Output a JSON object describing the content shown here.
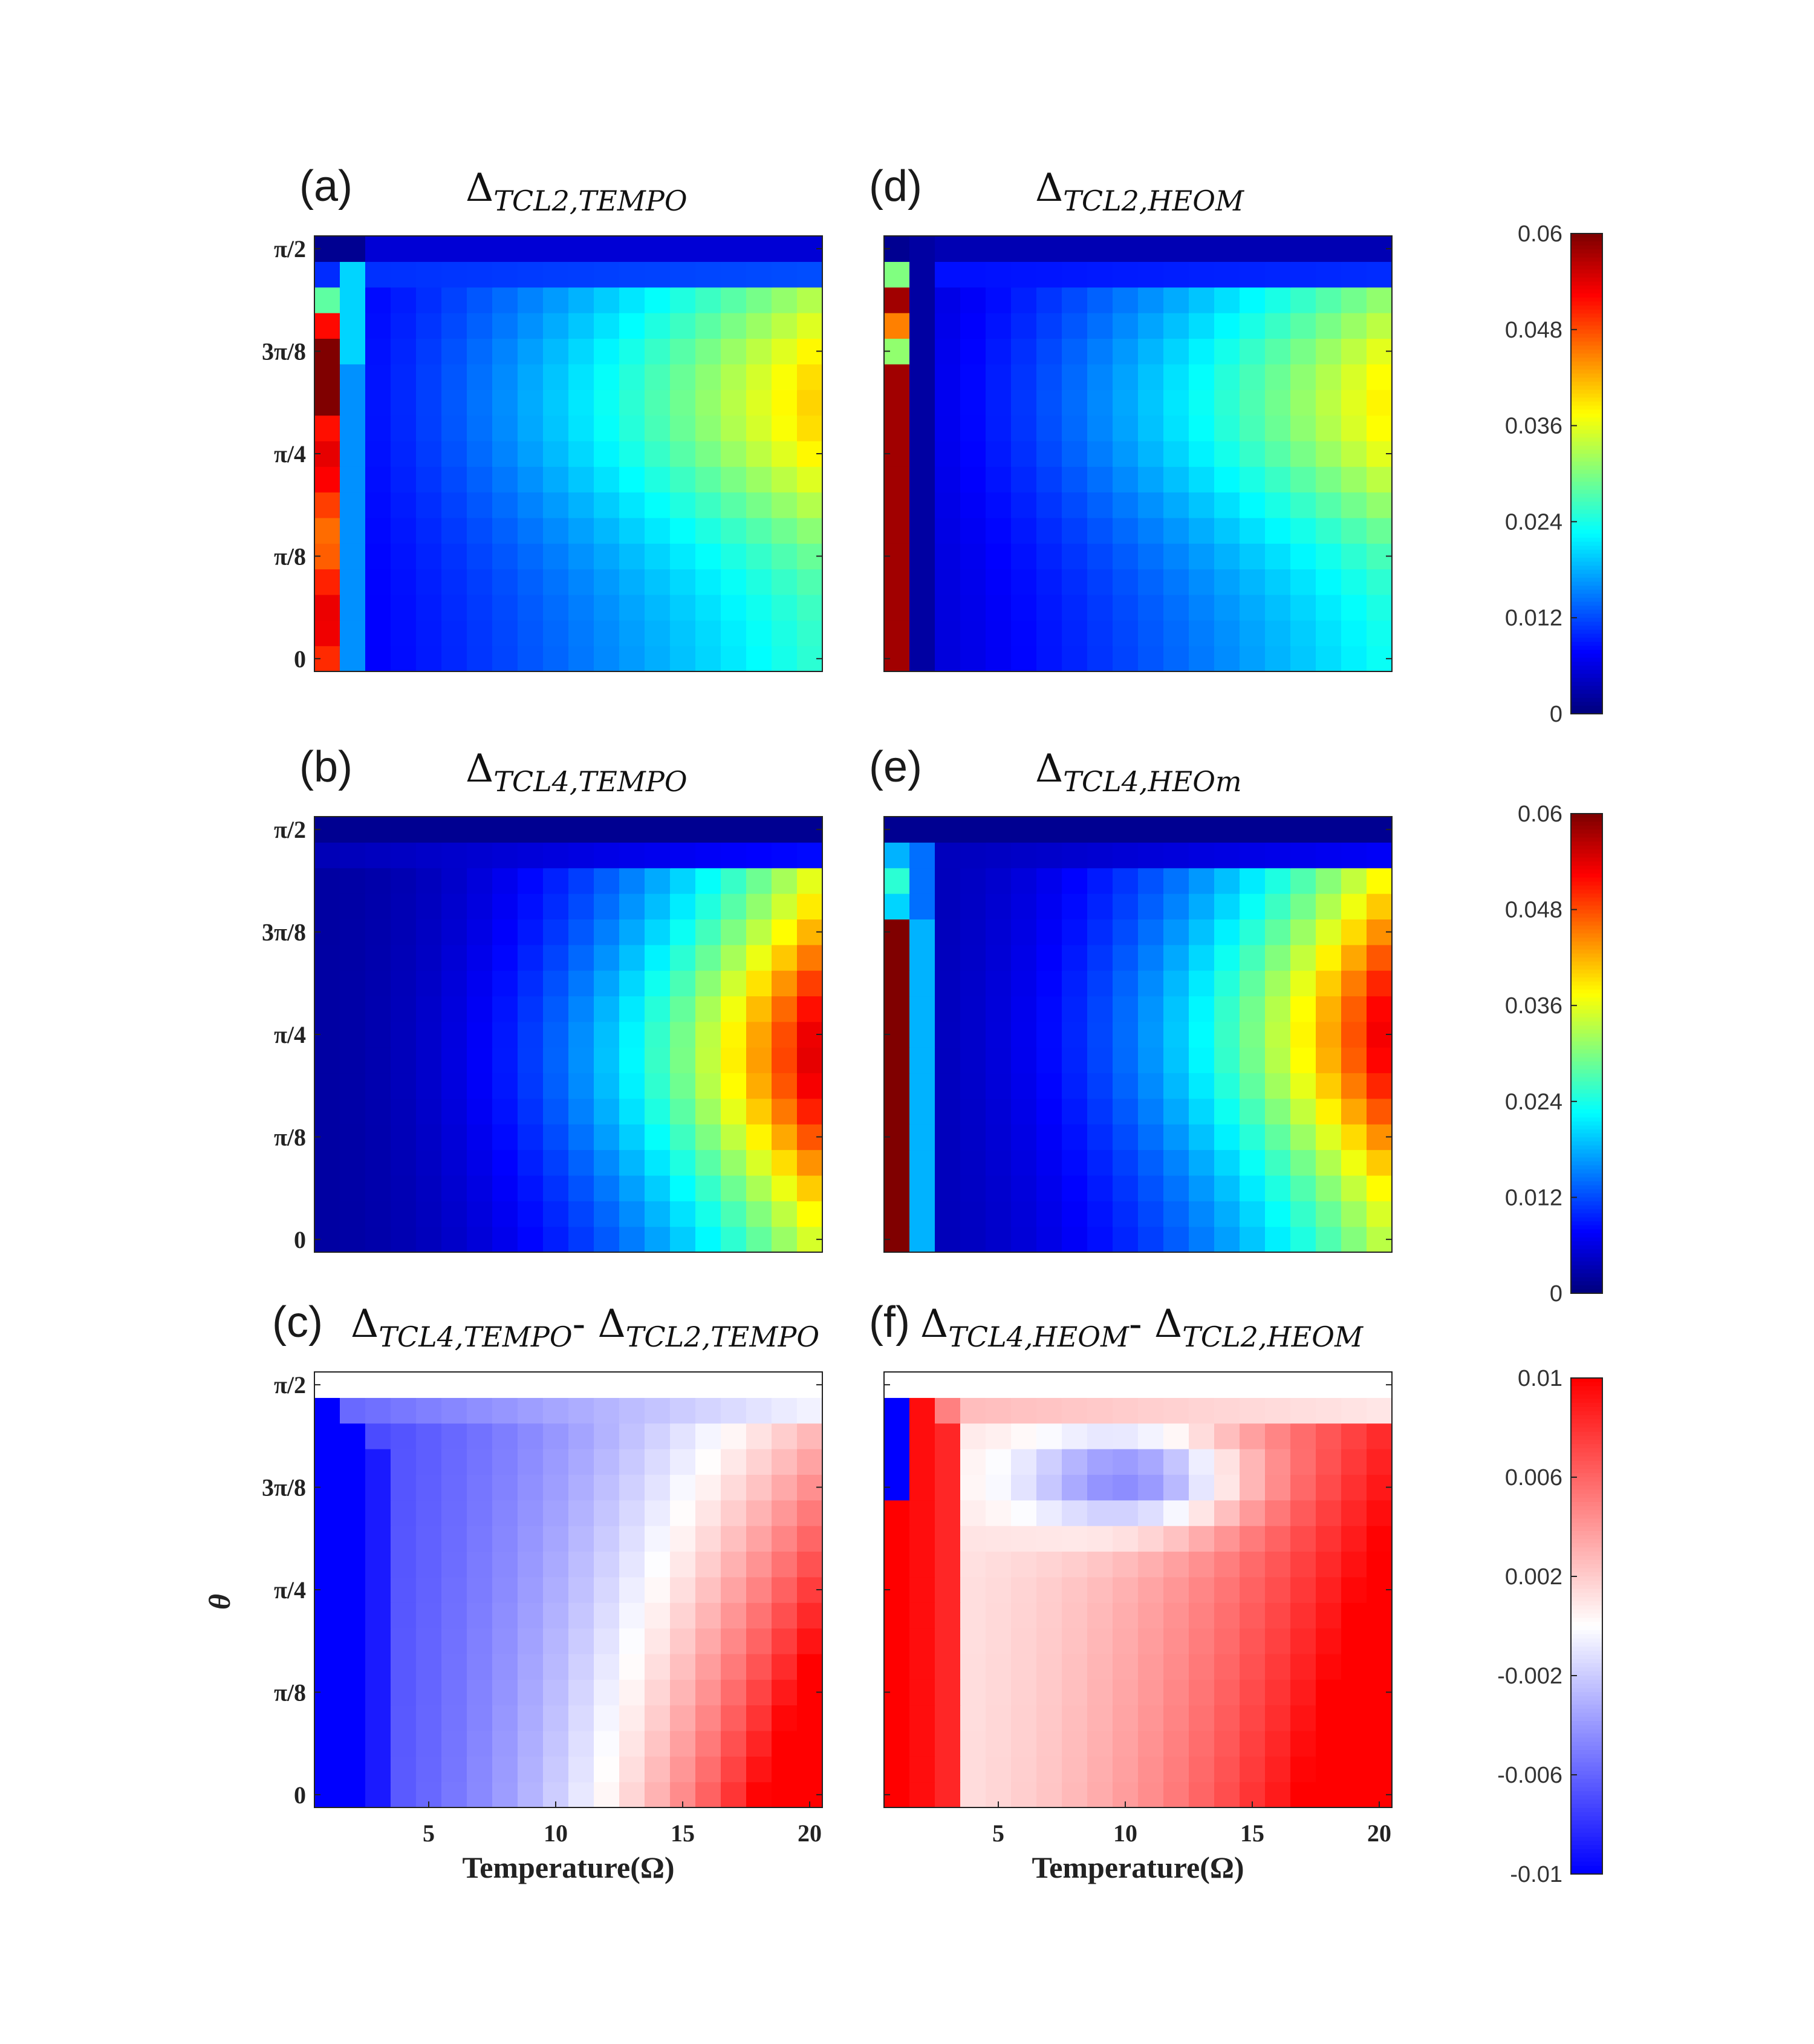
{
  "chart_data": [
    {
      "id": "a",
      "type": "heatmap",
      "panel": "(a)",
      "title_main": "Δ",
      "title_sub": "TCL2,TEMPO",
      "grid": "tcl2_tempo",
      "scale": "jet"
    },
    {
      "id": "b",
      "type": "heatmap",
      "panel": "(b)",
      "title_main": "Δ",
      "title_sub": "TCL4,TEMPO",
      "grid": "tcl4_tempo",
      "scale": "jet"
    },
    {
      "id": "c",
      "type": "heatmap",
      "panel": "(c)",
      "title_main": "Δ",
      "title_sub": "TCL4,TEMPO",
      "title_mid": "- Δ",
      "title_sub2": "TCL2,TEMPO",
      "grid": "diff_tempo",
      "scale": "bwr",
      "ylabel": "θ",
      "xlabel": "Temperature(Ω)"
    },
    {
      "id": "d",
      "type": "heatmap",
      "panel": "(d)",
      "title_main": "Δ",
      "title_sub": "TCL2,HEOM",
      "grid": "tcl2_heom",
      "scale": "jet"
    },
    {
      "id": "e",
      "type": "heatmap",
      "panel": "(e)",
      "title_main": "Δ",
      "title_sub": "TCL4,HEOm",
      "grid": "tcl4_heom",
      "scale": "jet"
    },
    {
      "id": "f",
      "type": "heatmap",
      "panel": "(f)",
      "title_main": "Δ",
      "title_sub": "TCL4,HEOM",
      "title_mid": "- Δ",
      "title_sub2": "TCL2,HEOM",
      "grid": "diff_heom",
      "scale": "bwr",
      "xlabel": "Temperature(Ω)"
    }
  ],
  "axes": {
    "x_range": [
      0,
      20
    ],
    "x_ticks": [
      5,
      10,
      15,
      20
    ],
    "y_ticks": [
      "0",
      "π/8",
      "π/4",
      "3π/8",
      "π/2"
    ],
    "y_tick_rows": [
      0,
      4,
      8,
      12,
      16
    ],
    "rows": 17,
    "cols": 20
  },
  "colorbars": {
    "jet_ticks": [
      "0.06",
      "0.048",
      "0.036",
      "0.024",
      "0.012",
      "0"
    ],
    "jet_range": [
      0,
      0.06
    ],
    "bwr_ticks": [
      "0.01",
      "0.006",
      "0.002",
      "-0.002",
      "-0.006",
      "-0.01"
    ],
    "bwr_range": [
      -0.01,
      0.01
    ]
  }
}
